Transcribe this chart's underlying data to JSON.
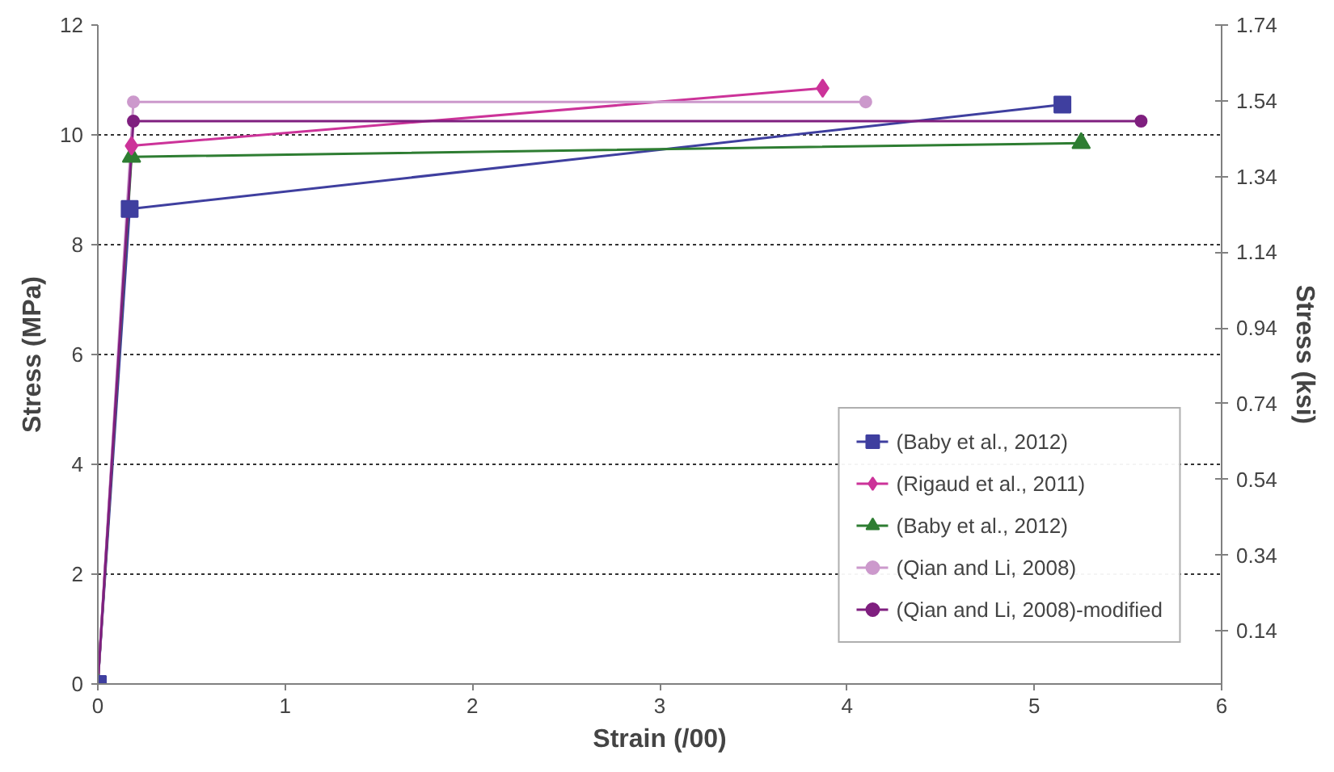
{
  "chart_data": {
    "type": "line",
    "xlabel": "Strain (/00)",
    "ylabel": "Stress (MPa)",
    "y2label": "Stress (ksi)",
    "xlim": [
      0,
      6
    ],
    "xticks": [
      0,
      1,
      2,
      3,
      4,
      5,
      6
    ],
    "ylim": [
      0,
      12
    ],
    "yticks": [
      0,
      2,
      4,
      6,
      8,
      10,
      12
    ],
    "y2lim": [
      0,
      1.74
    ],
    "y2ticks": [
      0.14,
      0.34,
      0.54,
      0.74,
      0.94,
      1.14,
      1.34,
      1.54,
      1.74
    ],
    "grid": "y",
    "legend": "bottom right",
    "line_style": "solid",
    "series": [
      {
        "name": "(Baby et al., 2012)",
        "color": "#3f3f9f",
        "marker": "square",
        "x": [
          0,
          0.17,
          5.15
        ],
        "values": [
          0,
          8.65,
          10.55
        ]
      },
      {
        "name": "(Rigaud et al., 2011)",
        "color": "#cc3399",
        "marker": "diamond",
        "x": [
          0,
          0.18,
          3.87
        ],
        "values": [
          0,
          9.8,
          10.85
        ]
      },
      {
        "name": "(Baby et al., 2012)",
        "color": "#2e7d32",
        "marker": "triangle",
        "x": [
          0,
          0.18,
          5.25
        ],
        "values": [
          0,
          9.6,
          9.85
        ]
      },
      {
        "name": "(Qian and Li, 2008)",
        "color": "#cc99cc",
        "marker": "circle",
        "x": [
          0,
          0.19,
          4.1
        ],
        "values": [
          0,
          10.6,
          10.6
        ]
      },
      {
        "name": "(Qian and Li, 2008)-modified",
        "color": "#7f1f7f",
        "marker": "circle",
        "x": [
          0,
          0.19,
          5.57
        ],
        "values": [
          0,
          10.25,
          10.25
        ]
      }
    ]
  }
}
